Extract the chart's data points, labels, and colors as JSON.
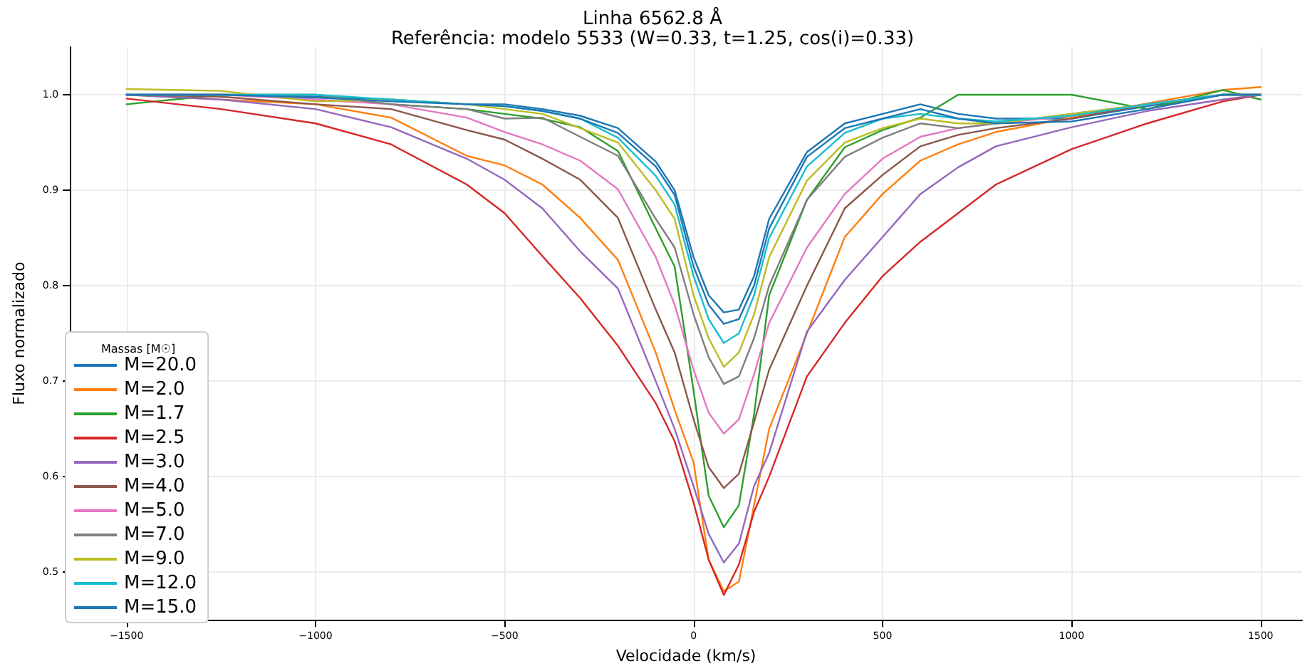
{
  "chart_data": {
    "type": "line",
    "title": "Linha 6562.8 Å",
    "subtitle": "Referência: modelo 5533 (W=0.33, t=1.25, cos(i)=0.33)",
    "xlabel": "Velocidade (km/s)",
    "ylabel": "Fluxo normalizado",
    "legend_title": "Massas [M☉]",
    "x": [
      -1500,
      -1250,
      -1000,
      -800,
      -600,
      -500,
      -400,
      -300,
      -200,
      -100,
      -50,
      0,
      40,
      80,
      120,
      160,
      200,
      300,
      400,
      500,
      600,
      700,
      800,
      1000,
      1200,
      1400,
      1500
    ],
    "series": [
      {
        "name": "M=20.0",
        "color": "#1f77b4",
        "values": [
          1.0,
          1.0,
          0.998,
          0.995,
          0.99,
          0.99,
          0.985,
          0.978,
          0.965,
          0.93,
          0.9,
          0.83,
          0.79,
          0.772,
          0.775,
          0.81,
          0.87,
          0.94,
          0.97,
          0.98,
          0.99,
          0.98,
          0.975,
          0.975,
          0.988,
          1.0,
          1.0
        ]
      },
      {
        "name": "M=2.0",
        "color": "#ff7f0e",
        "values": [
          1.0,
          0.995,
          0.99,
          0.976,
          0.936,
          0.926,
          0.906,
          0.871,
          0.827,
          0.73,
          0.67,
          0.615,
          0.513,
          0.48,
          0.49,
          0.57,
          0.65,
          0.75,
          0.851,
          0.896,
          0.931,
          0.948,
          0.961,
          0.976,
          0.991,
          1.005,
          1.008
        ]
      },
      {
        "name": "M=1.7",
        "color": "#2ca02c",
        "values": [
          0.99,
          1.0,
          1.0,
          0.99,
          0.985,
          0.98,
          0.975,
          0.966,
          0.941,
          0.86,
          0.82,
          0.69,
          0.58,
          0.547,
          0.57,
          0.665,
          0.79,
          0.89,
          0.945,
          0.963,
          0.976,
          1.0,
          1.0,
          1.0,
          0.985,
          1.005,
          0.995
        ]
      },
      {
        "name": "M=2.5",
        "color": "#d62728",
        "values": [
          0.996,
          0.985,
          0.97,
          0.948,
          0.906,
          0.876,
          0.831,
          0.787,
          0.737,
          0.677,
          0.637,
          0.573,
          0.513,
          0.476,
          0.508,
          0.563,
          0.6,
          0.705,
          0.761,
          0.81,
          0.846,
          0.876,
          0.906,
          0.943,
          0.97,
          0.993,
          1.0
        ]
      },
      {
        "name": "M=3.0",
        "color": "#9467bd",
        "values": [
          1.0,
          0.995,
          0.985,
          0.966,
          0.933,
          0.911,
          0.881,
          0.836,
          0.797,
          0.7,
          0.65,
          0.59,
          0.54,
          0.51,
          0.53,
          0.59,
          0.625,
          0.752,
          0.806,
          0.851,
          0.896,
          0.924,
          0.946,
          0.966,
          0.983,
          0.995,
          1.0
        ]
      },
      {
        "name": "M=4.0",
        "color": "#8c564b",
        "values": [
          1.0,
          0.998,
          0.99,
          0.985,
          0.963,
          0.953,
          0.933,
          0.911,
          0.871,
          0.775,
          0.73,
          0.66,
          0.61,
          0.588,
          0.603,
          0.657,
          0.712,
          0.8,
          0.881,
          0.916,
          0.946,
          0.958,
          0.965,
          0.975,
          0.99,
          1.0,
          1.0
        ]
      },
      {
        "name": "M=5.0",
        "color": "#e377c2",
        "values": [
          1.0,
          1.0,
          0.995,
          0.99,
          0.976,
          0.961,
          0.948,
          0.931,
          0.901,
          0.83,
          0.78,
          0.712,
          0.667,
          0.645,
          0.66,
          0.707,
          0.761,
          0.84,
          0.896,
          0.933,
          0.956,
          0.965,
          0.97,
          0.978,
          0.99,
          1.0,
          1.0
        ]
      },
      {
        "name": "M=7.0",
        "color": "#7f7f7f",
        "values": [
          1.0,
          1.0,
          1.0,
          0.99,
          0.985,
          0.975,
          0.976,
          0.956,
          0.936,
          0.87,
          0.84,
          0.77,
          0.725,
          0.697,
          0.705,
          0.745,
          0.8,
          0.89,
          0.935,
          0.955,
          0.97,
          0.965,
          0.97,
          0.98,
          0.99,
          1.0,
          1.0
        ]
      },
      {
        "name": "M=9.0",
        "color": "#bcbd22",
        "values": [
          1.006,
          1.004,
          0.993,
          0.995,
          0.99,
          0.985,
          0.98,
          0.965,
          0.95,
          0.9,
          0.87,
          0.79,
          0.745,
          0.715,
          0.73,
          0.77,
          0.83,
          0.91,
          0.95,
          0.965,
          0.975,
          0.97,
          0.97,
          0.98,
          0.99,
          1.0,
          1.0
        ]
      },
      {
        "name": "M=12.0",
        "color": "#17becf",
        "values": [
          1.0,
          1.0,
          1.0,
          0.995,
          0.99,
          0.988,
          0.983,
          0.975,
          0.955,
          0.915,
          0.885,
          0.81,
          0.765,
          0.74,
          0.75,
          0.79,
          0.85,
          0.925,
          0.96,
          0.975,
          0.98,
          0.975,
          0.972,
          0.978,
          0.99,
          1.0,
          1.0
        ]
      },
      {
        "name": "M=15.0",
        "color": "#1f77b4",
        "values": [
          1.0,
          1.0,
          0.997,
          0.993,
          0.99,
          0.988,
          0.983,
          0.975,
          0.96,
          0.925,
          0.895,
          0.82,
          0.78,
          0.76,
          0.765,
          0.8,
          0.86,
          0.935,
          0.965,
          0.975,
          0.985,
          0.975,
          0.97,
          0.972,
          0.985,
          1.0,
          1.0
        ]
      }
    ],
    "xlim": [
      -1650,
      1610
    ],
    "ylim": [
      0.45,
      1.05
    ],
    "xticks": [
      -1500,
      -1000,
      -500,
      0,
      500,
      1000,
      1500
    ],
    "yticks": [
      {
        "value": 0.5,
        "label": "0.5"
      },
      {
        "value": 0.6,
        "label": "0.6"
      },
      {
        "value": 0.7,
        "label": "0.7"
      },
      {
        "value": 0.8,
        "label": "0.8"
      },
      {
        "value": 0.9,
        "label": "0.9"
      },
      {
        "value": 1.0,
        "label": "1.0"
      }
    ],
    "grid": true,
    "legend": "bottom left",
    "marker": "none",
    "line_style": "solid"
  }
}
